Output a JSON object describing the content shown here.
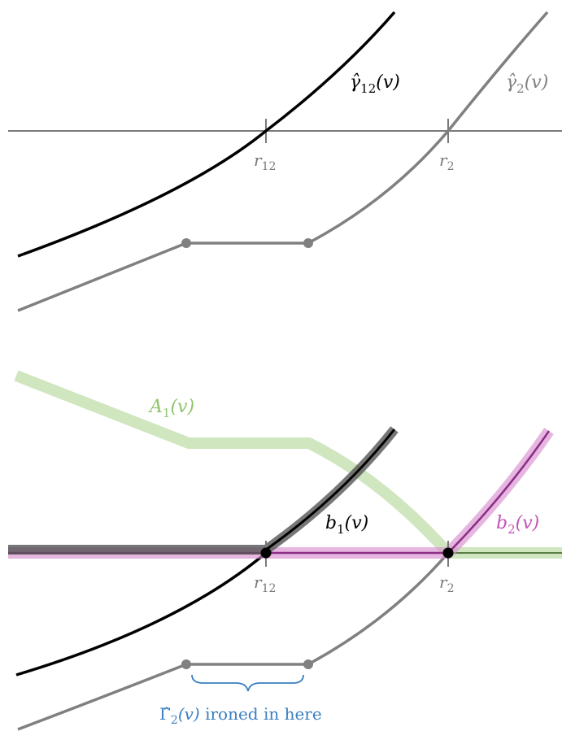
{
  "colors": {
    "axis": "#7a7a7a",
    "gamma12": "#000000",
    "gamma2": "#808080",
    "green": "#b5d99c",
    "green_dark": "#5a7d46",
    "magenta": "#d88fd0",
    "magenta_dark": "#8a2f86",
    "blue": "#3a7fc1"
  },
  "top_panel": {
    "gamma12_label": {
      "sym": "γ̂",
      "sub": "12",
      "arg": "(v)"
    },
    "gamma2_label": {
      "sym": "γ̂",
      "sub": "2",
      "arg": "(v)"
    },
    "tick_r12": {
      "sym": "r",
      "sub": "12"
    },
    "tick_r2": {
      "sym": "r",
      "sub": "2"
    }
  },
  "bottom_panel": {
    "A1_label": {
      "sym": "A",
      "sub": "1",
      "arg": "(v)"
    },
    "b1_label": {
      "sym": "b",
      "sub": "1",
      "arg": "(v)"
    },
    "b2_label": {
      "sym": "b",
      "sub": "2",
      "arg": "(v)"
    },
    "tick_r12": {
      "sym": "r",
      "sub": "12"
    },
    "tick_r2": {
      "sym": "r",
      "sub": "2"
    },
    "ironed_note": {
      "sym": "Γ̂",
      "sub": "2",
      "arg": "(v)",
      "text": " ironed in here"
    }
  }
}
